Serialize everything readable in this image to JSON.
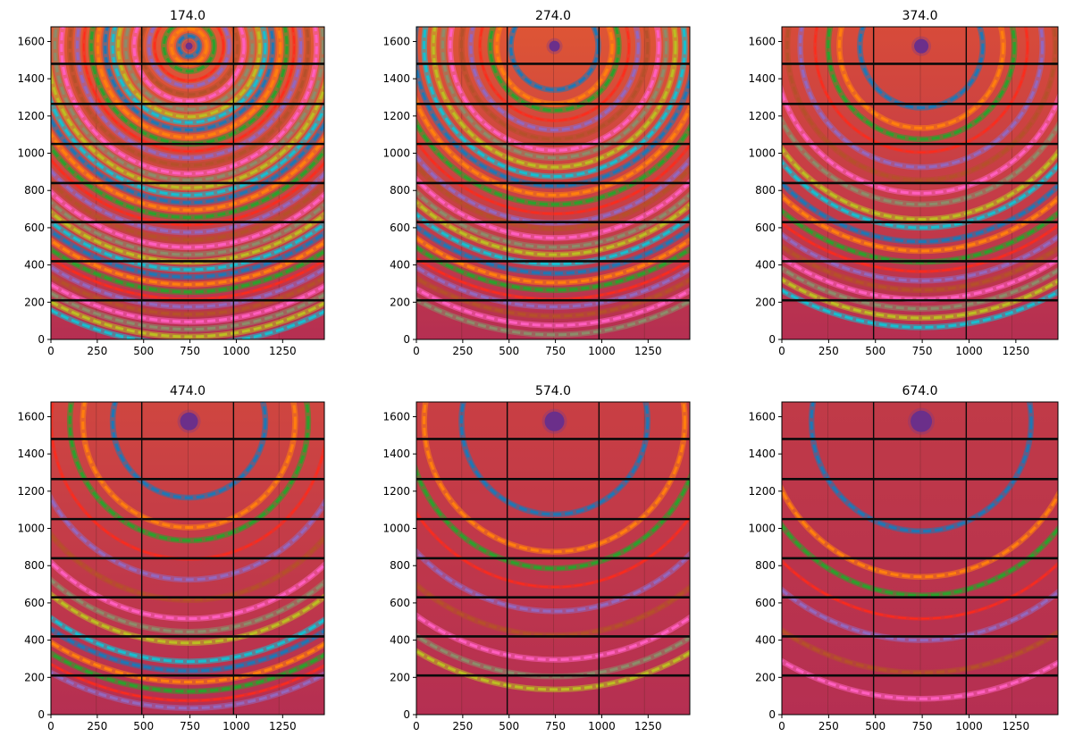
{
  "chart_data": [
    {
      "type": "heatmap",
      "title": "174.0",
      "xlim": [
        0,
        1475
      ],
      "ylim": [
        0,
        1679
      ],
      "xticks": [
        "0",
        "250",
        "500",
        "750",
        "1000",
        "1250"
      ],
      "yticks": [
        "0",
        "200",
        "400",
        "600",
        "800",
        "1000",
        "1200",
        "1400",
        "1600"
      ],
      "beam_center": {
        "x": 745,
        "y": 1575
      },
      "ring_radii": [
        55,
        95,
        135,
        185,
        215,
        260,
        295,
        340,
        380,
        410,
        450,
        490,
        525,
        565,
        600,
        640,
        685,
        720,
        760,
        800,
        840,
        880,
        920,
        960,
        1000,
        1040,
        1080,
        1120,
        1160,
        1200,
        1240,
        1280,
        1320,
        1360,
        1400,
        1440,
        1480,
        1520,
        1560,
        1600
      ]
    },
    {
      "type": "heatmap",
      "title": "274.0",
      "xlim": [
        0,
        1475
      ],
      "ylim": [
        0,
        1679
      ],
      "xticks": [
        "0",
        "250",
        "500",
        "750",
        "1000",
        "1250"
      ],
      "yticks": [
        "0",
        "200",
        "400",
        "600",
        "800",
        "1000",
        "1200",
        "1400",
        "1600"
      ],
      "beam_center": {
        "x": 745,
        "y": 1575
      },
      "ring_radii": [
        235,
        310,
        345,
        400,
        450,
        500,
        560,
        600,
        650,
        700,
        750,
        800,
        850,
        900,
        950,
        980,
        1030,
        1080,
        1120,
        1170,
        1220,
        1270,
        1310,
        1360,
        1400,
        1450,
        1500,
        1550
      ]
    },
    {
      "type": "heatmap",
      "title": "374.0",
      "xlim": [
        0,
        1475
      ],
      "ylim": [
        0,
        1679
      ],
      "xticks": [
        "0",
        "250",
        "500",
        "750",
        "1000",
        "1250"
      ],
      "yticks": [
        "0",
        "200",
        "400",
        "600",
        "800",
        "1000",
        "1200",
        "1400",
        "1600"
      ],
      "beam_center": {
        "x": 745,
        "y": 1575
      },
      "ring_radii": [
        330,
        440,
        500,
        570,
        650,
        720,
        790,
        850,
        930,
        975,
        1050,
        1100,
        1160,
        1210,
        1260,
        1310,
        1360,
        1410,
        1460,
        1510
      ]
    },
    {
      "type": "heatmap",
      "title": "474.0",
      "xlim": [
        0,
        1475
      ],
      "ylim": [
        0,
        1679
      ],
      "xticks": [
        "0",
        "250",
        "500",
        "750",
        "1000",
        "1250"
      ],
      "yticks": [
        "0",
        "200",
        "400",
        "600",
        "800",
        "1000",
        "1200",
        "1400",
        "1600"
      ],
      "beam_center": {
        "x": 745,
        "y": 1575
      },
      "ring_radii": [
        410,
        570,
        640,
        740,
        850,
        960,
        1060,
        1130,
        1190,
        1290,
        1340,
        1400,
        1450,
        1500,
        1540
      ]
    },
    {
      "type": "heatmap",
      "title": "574.0",
      "xlim": [
        0,
        1475
      ],
      "ylim": [
        0,
        1679
      ],
      "xticks": [
        "0",
        "250",
        "500",
        "750",
        "1000",
        "1250"
      ],
      "yticks": [
        "0",
        "200",
        "400",
        "600",
        "800",
        "1000",
        "1200",
        "1400",
        "1600"
      ],
      "beam_center": {
        "x": 745,
        "y": 1575
      },
      "ring_radii": [
        500,
        700,
        790,
        890,
        1020,
        1150,
        1280,
        1370,
        1440
      ]
    },
    {
      "type": "heatmap",
      "title": "674.0",
      "xlim": [
        0,
        1475
      ],
      "ylim": [
        0,
        1679
      ],
      "xticks": [
        "0",
        "250",
        "500",
        "750",
        "1000",
        "1250"
      ],
      "yticks": [
        "0",
        "200",
        "400",
        "600",
        "800",
        "1000",
        "1200",
        "1400",
        "1600"
      ],
      "beam_center": {
        "x": 745,
        "y": 1575
      },
      "ring_radii": [
        590,
        835,
        935,
        1060,
        1175,
        1350,
        1490
      ]
    }
  ],
  "ring_palette": [
    "#1f77b4",
    "#ff7f0e",
    "#2ca02c",
    "#ff2a1a",
    "#9467bd",
    "#b5502a",
    "#ff5fbf",
    "#8c8c6a",
    "#bcbd22",
    "#17becf"
  ],
  "detector": {
    "gap_rows": [
      210,
      420,
      630,
      840,
      1050,
      1265,
      1480
    ],
    "gap_cols": [
      490,
      985
    ],
    "faint_cols": [
      245,
      740,
      1230
    ]
  }
}
